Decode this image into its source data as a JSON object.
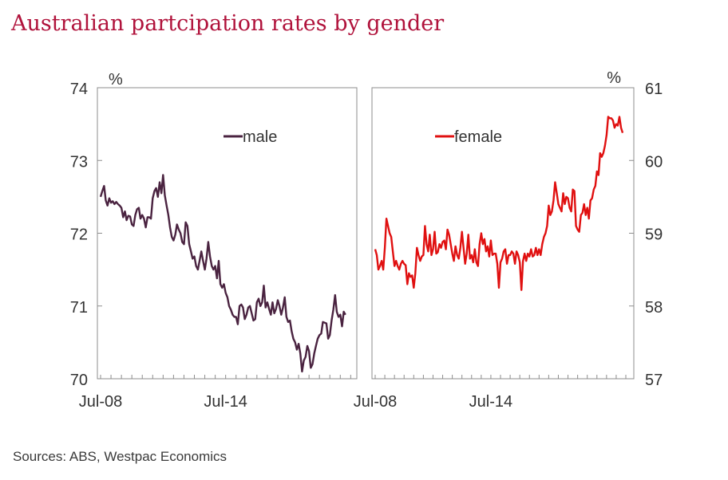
{
  "title": "Australian partcipation rates by gender",
  "source": "Sources: ABS, Westpac Economics",
  "colors": {
    "title": "#b0123b",
    "male": "#4a2340",
    "female": "#e01010",
    "axis": "#8c8c8c"
  },
  "chart_data": [
    {
      "type": "line",
      "x_start": "Jul-08",
      "x_end": "Jan-19",
      "x_tick_labels": [
        "Jul-08",
        "Jul-14"
      ],
      "y_axis_side": "left",
      "yunit": "%",
      "ylim": [
        70,
        74
      ],
      "yticks": [
        70,
        71,
        72,
        73,
        74
      ],
      "legend": "top-center",
      "grid": false,
      "series": [
        {
          "name": "male",
          "color": "#4a2340",
          "values": [
            72.5,
            72.58,
            72.65,
            72.45,
            72.38,
            72.48,
            72.42,
            72.44,
            72.4,
            72.43,
            72.4,
            72.38,
            72.35,
            72.22,
            72.3,
            72.18,
            72.24,
            72.23,
            72.12,
            72.1,
            72.25,
            72.33,
            72.35,
            72.2,
            72.25,
            72.2,
            72.08,
            72.22,
            72.22,
            72.2,
            72.48,
            72.58,
            72.62,
            72.5,
            72.7,
            72.55,
            72.8,
            72.52,
            72.38,
            72.25,
            72.08,
            71.95,
            71.9,
            71.98,
            72.12,
            72.05,
            72.0,
            71.88,
            71.85,
            72.15,
            72.1,
            71.85,
            71.75,
            71.65,
            71.68,
            71.55,
            71.5,
            71.62,
            71.75,
            71.62,
            71.5,
            71.65,
            71.88,
            71.68,
            71.55,
            71.5,
            71.55,
            71.38,
            71.62,
            71.3,
            71.25,
            71.3,
            71.18,
            71.12,
            71.0,
            70.95,
            70.88,
            70.85,
            70.85,
            70.75,
            71.0,
            71.02,
            70.98,
            70.82,
            70.88,
            70.98,
            71.0,
            70.9,
            70.8,
            70.82,
            71.05,
            71.1,
            71.0,
            71.05,
            71.28,
            70.98,
            71.05,
            70.96,
            70.88,
            71.05,
            70.9,
            70.96,
            71.08,
            71.0,
            70.88,
            70.98,
            71.12,
            70.85,
            70.78,
            70.8,
            70.65,
            70.55,
            70.5,
            70.4,
            70.48,
            70.35,
            70.1,
            70.25,
            70.3,
            70.45,
            70.38,
            70.15,
            70.2,
            70.35,
            70.45,
            70.55,
            70.6,
            70.62,
            70.78,
            70.77,
            70.76,
            70.55,
            70.6,
            70.8,
            70.95,
            71.15,
            70.92,
            70.85,
            70.88,
            70.72,
            70.92,
            70.88
          ]
        }
      ]
    },
    {
      "type": "line",
      "x_start": "Jul-08",
      "x_end": "Jan-19",
      "x_tick_labels": [
        "Jul-08",
        "Jul-14"
      ],
      "y_axis_side": "right",
      "yunit": "%",
      "ylim": [
        57,
        61
      ],
      "yticks": [
        57,
        58,
        59,
        60,
        61
      ],
      "legend": "top-center",
      "grid": false,
      "series": [
        {
          "name": "female",
          "color": "#e01010",
          "values": [
            58.78,
            58.7,
            58.5,
            58.55,
            58.62,
            58.5,
            58.8,
            59.2,
            59.1,
            59.0,
            58.95,
            58.75,
            58.55,
            58.62,
            58.55,
            58.5,
            58.58,
            58.62,
            58.58,
            58.56,
            58.3,
            58.45,
            58.4,
            58.42,
            58.25,
            58.45,
            58.8,
            58.7,
            58.62,
            58.68,
            58.7,
            59.1,
            58.85,
            58.75,
            58.98,
            58.7,
            58.78,
            59.02,
            58.72,
            58.74,
            58.85,
            58.8,
            58.88,
            58.9,
            58.78,
            59.05,
            58.98,
            58.85,
            58.72,
            58.62,
            58.82,
            58.7,
            58.65,
            58.8,
            59.02,
            58.8,
            58.58,
            58.72,
            58.98,
            58.65,
            58.7,
            58.6,
            58.78,
            58.6,
            58.55,
            58.85,
            59.0,
            58.85,
            58.92,
            58.75,
            58.82,
            58.68,
            58.9,
            58.7,
            58.72,
            58.72,
            58.58,
            58.25,
            58.6,
            58.65,
            58.75,
            58.78,
            58.58,
            58.7,
            58.7,
            58.75,
            58.72,
            58.58,
            58.75,
            58.7,
            58.6,
            58.22,
            58.62,
            58.72,
            58.62,
            58.72,
            58.68,
            58.78,
            58.68,
            58.7,
            58.8,
            58.7,
            58.78,
            58.7,
            58.85,
            58.95,
            59.0,
            59.1,
            59.38,
            59.25,
            59.3,
            59.45,
            59.7,
            59.55,
            59.4,
            59.35,
            59.3,
            59.55,
            59.4,
            59.5,
            59.48,
            59.35,
            59.3,
            59.6,
            59.58,
            59.1,
            59.05,
            59.02,
            59.25,
            59.28,
            59.4,
            59.25,
            59.35,
            59.2,
            59.45,
            59.48,
            59.6,
            59.65,
            59.85,
            59.8,
            60.1,
            60.05,
            60.1,
            60.2,
            60.35,
            60.6,
            60.58,
            60.58,
            60.55,
            60.45,
            60.5,
            60.48,
            60.6,
            60.45,
            60.38
          ]
        }
      ]
    }
  ]
}
